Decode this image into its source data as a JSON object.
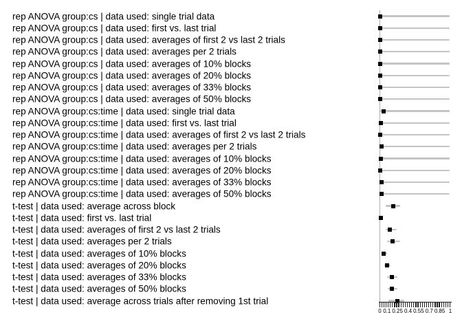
{
  "figure": {
    "background_color": "#ffffff",
    "text_color": "#000000",
    "point_color": "#000000",
    "range_line_color": "#c4c4c4",
    "zero_line_color": "#aeaeae"
  },
  "chart_data": {
    "type": "scatter",
    "subtype": "forest-dot-plot-with-range-bars",
    "title": "",
    "xlabel": "",
    "ylabel": "",
    "xlim": [
      0,
      1
    ],
    "grid": false,
    "legend": false,
    "x_tick_labels": [
      "0",
      "0.1",
      "0.25",
      "0.4",
      "0.55",
      "0.7",
      "0.85",
      "1"
    ],
    "x_tick_values": [
      0,
      0.1,
      0.25,
      0.4,
      0.55,
      0.7,
      0.85,
      1
    ],
    "minor_tick_count": 34,
    "rows": [
      {
        "label": "rep ANOVA group:cs | data used: single trial data",
        "value": 0.005,
        "lo": 0.0,
        "hi": 0.99
      },
      {
        "label": "rep ANOVA group:cs | data used: first vs. last trial",
        "value": 0.005,
        "lo": 0.0,
        "hi": 0.99
      },
      {
        "label": "rep ANOVA group:cs | data used: averages of first 2 vs last 2 trials",
        "value": 0.005,
        "lo": 0.0,
        "hi": 0.99
      },
      {
        "label": "rep ANOVA group:cs | data used: averages per 2 trials",
        "value": 0.005,
        "lo": 0.0,
        "hi": 0.99
      },
      {
        "label": "rep ANOVA group:cs | data used: averages of 10% blocks",
        "value": 0.005,
        "lo": 0.0,
        "hi": 0.99
      },
      {
        "label": "rep ANOVA group:cs | data used: averages of 20% blocks",
        "value": 0.005,
        "lo": 0.0,
        "hi": 0.99
      },
      {
        "label": "rep ANOVA group:cs | data used: averages of 33% blocks",
        "value": 0.005,
        "lo": 0.0,
        "hi": 0.99
      },
      {
        "label": "rep ANOVA group:cs | data used: averages of 50% blocks",
        "value": 0.005,
        "lo": 0.0,
        "hi": 0.99
      },
      {
        "label": "rep ANOVA group:cs:time | data used: single trial data",
        "value": 0.05,
        "lo": 0.0,
        "hi": 0.99
      },
      {
        "label": "rep ANOVA group:cs:time | data used: first vs. last trial",
        "value": 0.01,
        "lo": 0.0,
        "hi": 0.99
      },
      {
        "label": "rep ANOVA group:cs:time | data used: averages of first 2 vs last 2 trials",
        "value": 0.0,
        "lo": 0.0,
        "hi": 0.99
      },
      {
        "label": "rep ANOVA group:cs:time | data used: averages per 2 trials",
        "value": 0.02,
        "lo": 0.0,
        "hi": 0.99
      },
      {
        "label": "rep ANOVA group:cs:time | data used: averages of 10% blocks",
        "value": 0.01,
        "lo": 0.0,
        "hi": 0.99
      },
      {
        "label": "rep ANOVA group:cs:time | data used: averages of 20% blocks",
        "value": 0.0,
        "lo": 0.0,
        "hi": 0.99
      },
      {
        "label": "rep ANOVA group:cs:time | data used: averages of 33% blocks",
        "value": 0.02,
        "lo": 0.0,
        "hi": 0.99
      },
      {
        "label": "rep ANOVA group:cs:time | data used: averages of 50% blocks",
        "value": 0.02,
        "lo": 0.0,
        "hi": 0.99
      },
      {
        "label": "t-test | data used: average across block",
        "value": 0.19,
        "lo": 0.08,
        "hi": 0.29
      },
      {
        "label": "t-test | data used: first vs. last trial",
        "value": 0.01,
        "lo": 0.0,
        "hi": 0.03
      },
      {
        "label": "t-test | data used: averages of first 2 vs last 2 trials",
        "value": 0.14,
        "lo": 0.08,
        "hi": 0.24
      },
      {
        "label": "t-test | data used: averages per 2 trials",
        "value": 0.18,
        "lo": 0.1,
        "hi": 0.29
      },
      {
        "label": "t-test | data used: averages of 10% blocks",
        "value": 0.05,
        "lo": 0.02,
        "hi": 0.1
      },
      {
        "label": "t-test | data used: averages of 20% blocks",
        "value": 0.1,
        "lo": 0.06,
        "hi": 0.15
      },
      {
        "label": "t-test | data used: averages of 33% blocks",
        "value": 0.17,
        "lo": 0.1,
        "hi": 0.25
      },
      {
        "label": "t-test | data used: averages of 50% blocks",
        "value": 0.17,
        "lo": 0.11,
        "hi": 0.25
      },
      {
        "label": "t-test | data used: average across trials after removing 1st trial",
        "value": 0.25,
        "lo": 0.12,
        "hi": 0.35
      }
    ]
  }
}
